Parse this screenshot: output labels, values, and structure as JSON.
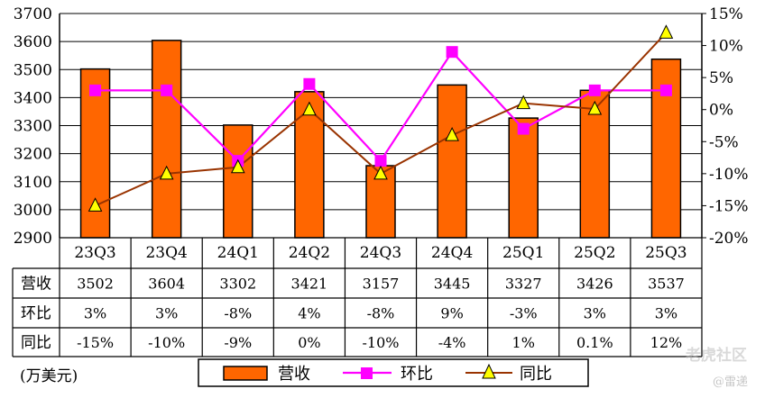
{
  "chart_data": {
    "type": "bar",
    "categories": [
      "23Q3",
      "23Q4",
      "24Q1",
      "24Q2",
      "24Q3",
      "24Q4",
      "25Q1",
      "25Q2",
      "25Q3"
    ],
    "series": [
      {
        "name": "营收",
        "type": "bar",
        "axis": "left",
        "color": "#ff6600",
        "values": [
          3502,
          3604,
          3302,
          3421,
          3157,
          3445,
          3327,
          3426,
          3537
        ]
      },
      {
        "name": "环比",
        "type": "line",
        "axis": "right",
        "color": "#ff00ff",
        "marker": "square",
        "values": [
          3,
          3,
          -8,
          4,
          -8,
          9,
          -3,
          3,
          3
        ]
      },
      {
        "name": "同比",
        "type": "line",
        "axis": "right",
        "color": "#993300",
        "marker": "triangle",
        "values": [
          -15,
          -10,
          -9,
          0,
          -10,
          -4,
          1,
          0.1,
          12
        ]
      }
    ],
    "ylim": [
      2900,
      3700
    ],
    "yticks": [
      2900,
      3000,
      3100,
      3200,
      3300,
      3400,
      3500,
      3600,
      3700
    ],
    "y2lim": [
      -20,
      15
    ],
    "y2ticks": [
      15,
      10,
      5,
      0,
      -5,
      -10,
      -15,
      -20
    ],
    "y2tick_labels": [
      "15%",
      "10%",
      "5%",
      "0%",
      "-5%",
      "-10%",
      "-15%",
      "-20%"
    ],
    "grid": true,
    "legend_position": "bottom"
  },
  "table": {
    "rows": [
      {
        "label": "营收",
        "cells": [
          "3502",
          "3604",
          "3302",
          "3421",
          "3157",
          "3445",
          "3327",
          "3426",
          "3537"
        ]
      },
      {
        "label": "环比",
        "cells": [
          "3%",
          "3%",
          "-8%",
          "4%",
          "-8%",
          "9%",
          "-3%",
          "3%",
          "3%"
        ]
      },
      {
        "label": "同比",
        "cells": [
          "-15%",
          "-10%",
          "-9%",
          "0%",
          "-10%",
          "-4%",
          "1%",
          "0.1%",
          "12%"
        ]
      }
    ]
  },
  "unit_label": "(万美元)",
  "watermark": "老虎社区",
  "author": "@雷递"
}
